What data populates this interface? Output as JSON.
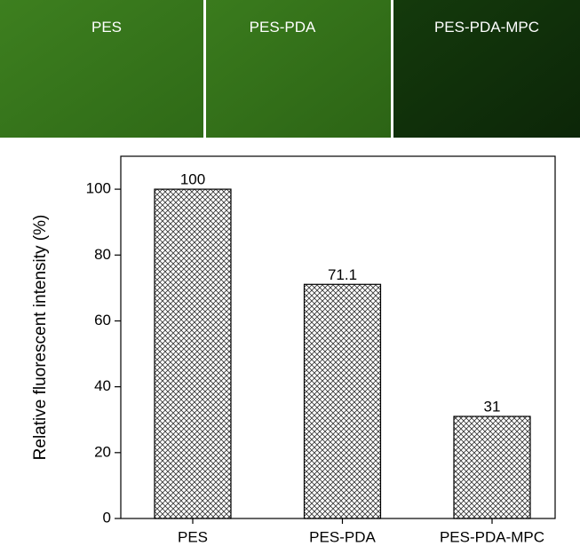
{
  "images": {
    "labels": [
      "PES",
      "PES-PDA",
      "PES-PDA-MPC"
    ]
  },
  "chart_data": {
    "type": "bar",
    "y_label": "Relative fluorescent intensity (%)",
    "categories": [
      "PES",
      "PES-PDA",
      "PES-PDA-MPC"
    ],
    "values": [
      100,
      71.1,
      31
    ],
    "ylim": [
      0,
      110
    ],
    "yticks": [
      0,
      20,
      40,
      60,
      80,
      100
    ],
    "pattern": "crosshatch"
  }
}
